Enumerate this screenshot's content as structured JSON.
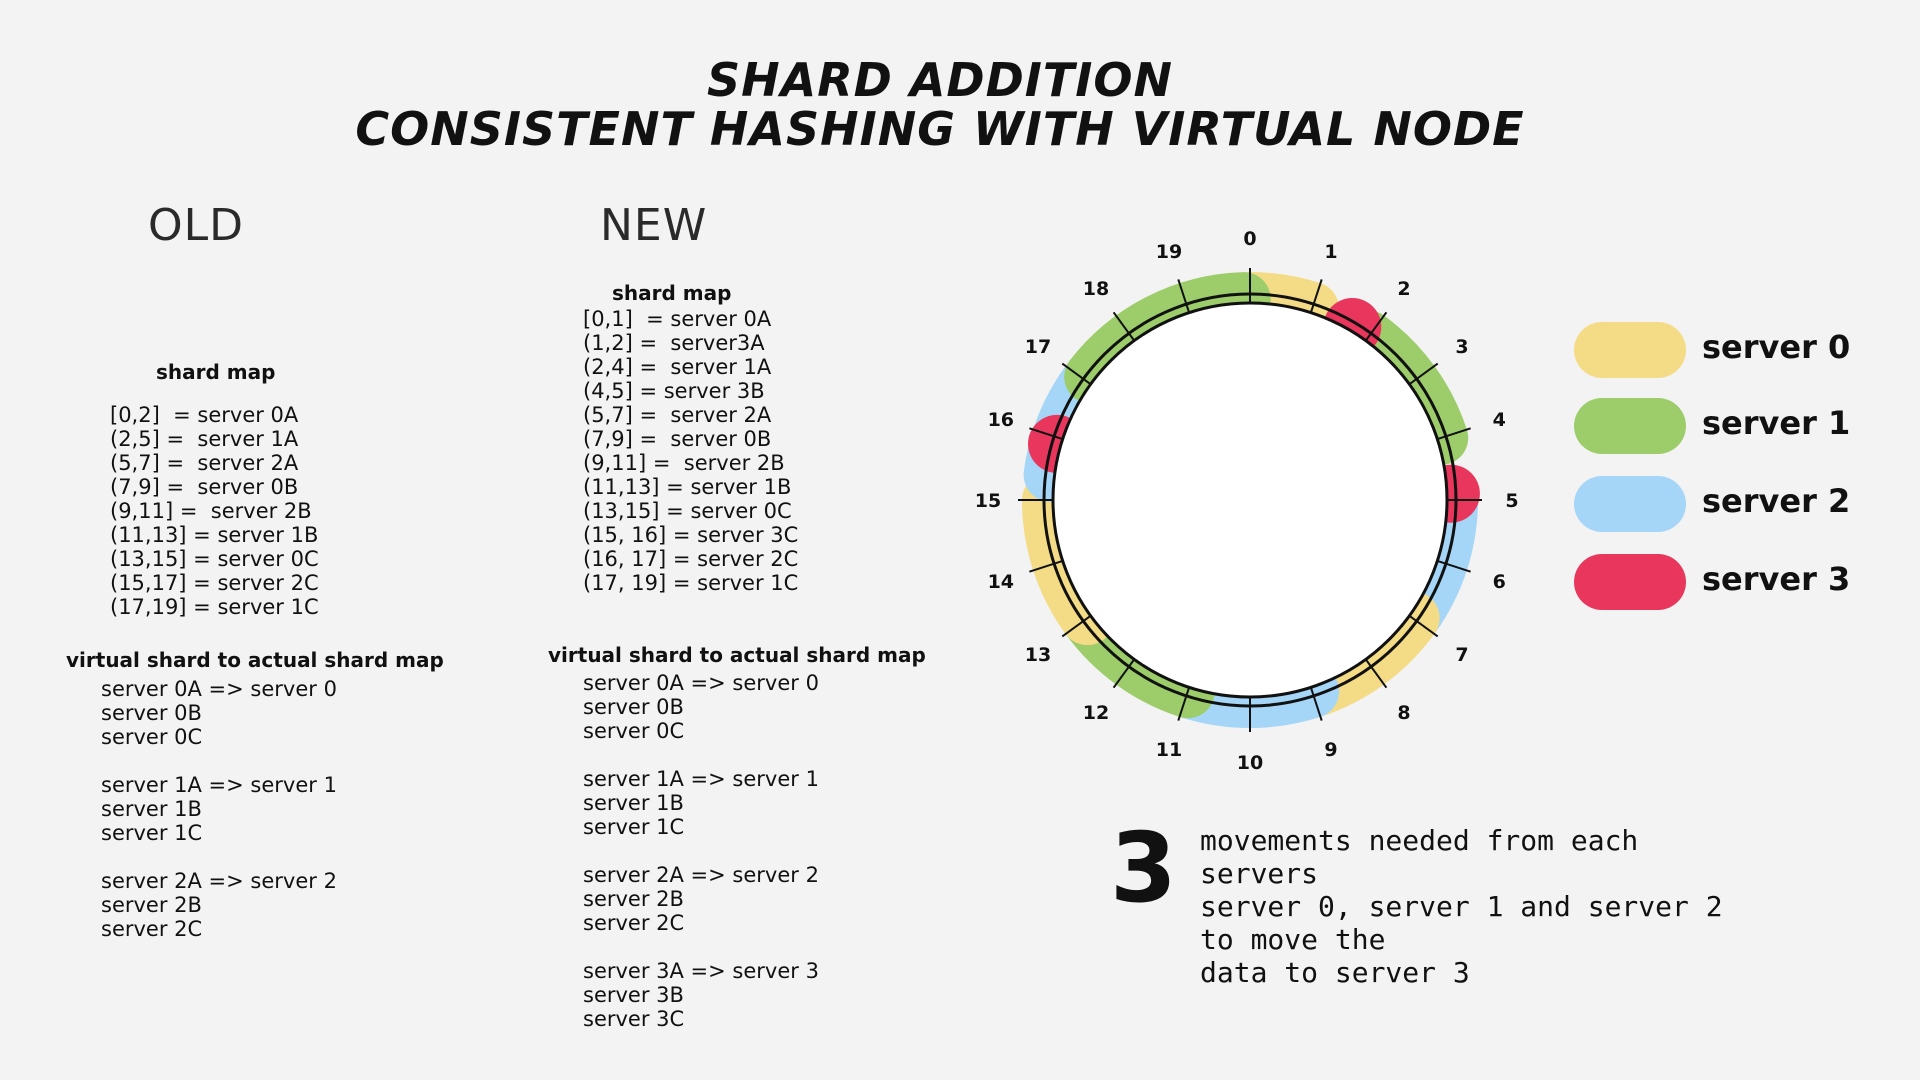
{
  "title": {
    "line1": "SHARD ADDITION",
    "line2": "CONSISTENT HASHING WITH VIRTUAL NODE"
  },
  "old": {
    "header": "OLD",
    "shard_map_title": "shard map",
    "shard_map": [
      "[0,2]  = server 0A",
      "(2,5] =  server 1A",
      "(5,7] =  server 2A",
      "(7,9] =  server 0B",
      "(9,11] =  server 2B",
      "(11,13] = server 1B",
      "(13,15] = server 0C",
      "(15,17] = server 2C",
      "(17,19] = server 1C"
    ],
    "virtual_map_title": "virtual shard to actual shard map",
    "virtual_groups": [
      [
        "server 0A => server 0",
        "server 0B",
        "server 0C"
      ],
      [
        "server 1A => server 1",
        "server 1B",
        "server 1C"
      ],
      [
        "server 2A => server 2",
        "server 2B",
        "server 2C"
      ]
    ]
  },
  "new": {
    "header": "NEW",
    "shard_map_title": "shard map",
    "shard_map": [
      "[0,1]  = server 0A",
      "(1,2] =  server3A",
      "(2,4] =  server 1A",
      "(4,5] = server 3B",
      "(5,7] =  server 2A",
      "(7,9] =  server 0B",
      "(9,11] =  server 2B",
      "(11,13] = server 1B",
      "(13,15] = server 0C",
      "(15, 16] = server 3C",
      "(16, 17] = server 2C",
      "(17, 19] = server 1C"
    ],
    "virtual_map_title": "virtual shard to actual shard map",
    "virtual_groups": [
      [
        "server 0A => server 0",
        "server 0B",
        "server 0C"
      ],
      [
        "server 1A => server 1",
        "server 1B",
        "server 1C"
      ],
      [
        "server 2A => server 2",
        "server 2B",
        "server 2C"
      ],
      [
        "server 3A => server 3",
        "server 3B",
        "server 3C"
      ]
    ]
  },
  "ring": {
    "positions": [
      "0",
      "1",
      "2",
      "3",
      "4",
      "5",
      "6",
      "7",
      "8",
      "9",
      "10",
      "11",
      "12",
      "13",
      "14",
      "15",
      "16",
      "17",
      "18",
      "19"
    ]
  },
  "legend": [
    {
      "label": "server 0",
      "color": "#f4dc86"
    },
    {
      "label": "server 1",
      "color": "#9ccd6a"
    },
    {
      "label": "server 2",
      "color": "#a6d6f7"
    },
    {
      "label": "server 3",
      "color": "#e8365c"
    }
  ],
  "movement": {
    "count": "3",
    "lines": [
      "movements needed from each servers",
      "server 0, server 1 and server 2 to move the",
      "data to server 3"
    ]
  }
}
